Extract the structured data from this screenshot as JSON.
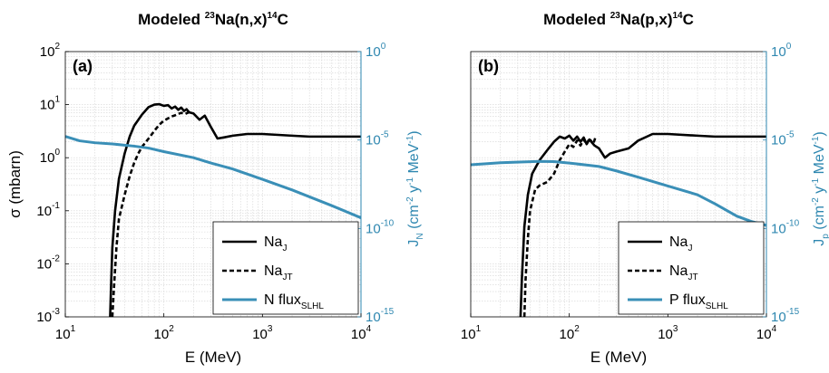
{
  "colors": {
    "na_j": "#000000",
    "na_jt": "#000000",
    "flux": "#3a8fb7",
    "right_axis": "#2e87b0",
    "grid": "#d4d4d4"
  },
  "chart_data": [
    {
      "type": "line",
      "panel_label": "(a)",
      "title": {
        "pre": "Modeled ",
        "sup1": "23",
        "mid": "Na(n,x)",
        "sup2": "14",
        "post": "C"
      },
      "xlabel": "E (MeV)",
      "ylabel": "σ (mbarn)",
      "y2label": {
        "main": "J",
        "sub": "N",
        "pre": " (cm",
        "e1": "-2",
        "mid1": " y",
        "e2": "-1",
        "mid2": " MeV",
        "e3": "-1",
        "post": ")"
      },
      "xscale": "log",
      "yscale": "log",
      "y2scale": "log",
      "xlim": [
        10,
        10000
      ],
      "ylim": [
        0.001,
        100
      ],
      "y2lim": [
        1e-15,
        1
      ],
      "x_ticks": [
        {
          "b": "10",
          "e": "1"
        },
        {
          "b": "10",
          "e": "2"
        },
        {
          "b": "10",
          "e": "3"
        },
        {
          "b": "10",
          "e": "4"
        }
      ],
      "y_ticks": [
        {
          "b": "10",
          "e": "-3"
        },
        {
          "b": "10",
          "e": "-2"
        },
        {
          "b": "10",
          "e": "-1"
        },
        {
          "b": "10",
          "e": "0"
        },
        {
          "b": "10",
          "e": "1"
        },
        {
          "b": "10",
          "e": "2"
        }
      ],
      "y2_ticks": [
        {
          "b": "10",
          "e": "-15"
        },
        {
          "b": "10",
          "e": "-10"
        },
        {
          "b": "10",
          "e": "-5"
        },
        {
          "b": "10",
          "e": "0"
        }
      ],
      "grid": true,
      "legend": {
        "position": "bottom-right",
        "entries": [
          {
            "main": "Na",
            "sub": "J",
            "style": "solid"
          },
          {
            "main": "Na",
            "sub": "JT",
            "style": "dashed"
          },
          {
            "main": "N flux",
            "sub": "SLHL",
            "style": "flux"
          }
        ]
      },
      "series": [
        {
          "name": "NaJ",
          "axis": "left",
          "style": "solid",
          "points": [
            [
              28.5,
              0.001
            ],
            [
              29,
              0.003
            ],
            [
              30,
              0.02
            ],
            [
              32,
              0.1
            ],
            [
              35,
              0.4
            ],
            [
              40,
              1.2
            ],
            [
              45,
              2.5
            ],
            [
              50,
              4
            ],
            [
              60,
              6.5
            ],
            [
              70,
              9
            ],
            [
              80,
              10
            ],
            [
              90,
              10.2
            ],
            [
              100,
              9.5
            ],
            [
              110,
              9.8
            ],
            [
              120,
              8.5
            ],
            [
              130,
              9.2
            ],
            [
              140,
              8
            ],
            [
              150,
              8.8
            ],
            [
              160,
              7.6
            ],
            [
              170,
              8.2
            ],
            [
              180,
              7.2
            ],
            [
              200,
              6.8
            ],
            [
              230,
              5.2
            ],
            [
              260,
              6.2
            ],
            [
              300,
              3.8
            ],
            [
              350,
              2.3
            ],
            [
              400,
              2.4
            ],
            [
              500,
              2.6
            ],
            [
              700,
              2.8
            ],
            [
              1000,
              2.8
            ],
            [
              2000,
              2.6
            ],
            [
              3000,
              2.5
            ],
            [
              10000,
              2.5
            ]
          ]
        },
        {
          "name": "NaJT",
          "axis": "left",
          "style": "dashed",
          "points": [
            [
              30,
              0.001
            ],
            [
              31,
              0.003
            ],
            [
              33,
              0.02
            ],
            [
              35,
              0.07
            ],
            [
              40,
              0.2
            ],
            [
              45,
              0.45
            ],
            [
              50,
              0.8
            ],
            [
              55,
              1.2
            ],
            [
              60,
              1.6
            ],
            [
              70,
              2.3
            ],
            [
              80,
              3.2
            ],
            [
              90,
              4.2
            ],
            [
              100,
              5
            ],
            [
              110,
              5.5
            ],
            [
              120,
              6
            ],
            [
              130,
              6.3
            ],
            [
              140,
              6.7
            ],
            [
              150,
              7
            ],
            [
              165,
              6.7
            ],
            [
              180,
              7.2
            ]
          ]
        },
        {
          "name": "N flux",
          "axis": "right",
          "style": "flux",
          "points": [
            [
              10,
              1.6e-05
            ],
            [
              14,
              9e-06
            ],
            [
              20,
              7e-06
            ],
            [
              30,
              6e-06
            ],
            [
              50,
              4.5e-06
            ],
            [
              70,
              3.5e-06
            ],
            [
              100,
              2.2e-06
            ],
            [
              200,
              1e-06
            ],
            [
              300,
              5e-07
            ],
            [
              500,
              2.3e-07
            ],
            [
              1000,
              6e-08
            ],
            [
              2000,
              1.5e-08
            ],
            [
              5000,
              2e-09
            ],
            [
              10000,
              4e-10
            ]
          ]
        }
      ]
    },
    {
      "type": "line",
      "panel_label": "(b)",
      "title": {
        "pre": "Modeled ",
        "sup1": "23",
        "mid": "Na(p,x)",
        "sup2": "14",
        "post": "C"
      },
      "xlabel": "E (MeV)",
      "ylabel": "",
      "y2label": {
        "main": "J",
        "sub": "p",
        "pre": " (cm",
        "e1": "-2",
        "mid1": " y",
        "e2": "-1",
        "mid2": " MeV",
        "e3": "-1",
        "post": ")"
      },
      "xscale": "log",
      "yscale": "log",
      "y2scale": "log",
      "xlim": [
        10,
        10000
      ],
      "ylim": [
        0.001,
        100
      ],
      "y2lim": [
        1e-15,
        1
      ],
      "x_ticks": [
        {
          "b": "10",
          "e": "1"
        },
        {
          "b": "10",
          "e": "2"
        },
        {
          "b": "10",
          "e": "3"
        },
        {
          "b": "10",
          "e": "4"
        }
      ],
      "y_ticks": [],
      "y2_ticks": [
        {
          "b": "10",
          "e": "-15"
        },
        {
          "b": "10",
          "e": "-10"
        },
        {
          "b": "10",
          "e": "-5"
        },
        {
          "b": "10",
          "e": "0"
        }
      ],
      "grid": true,
      "legend": {
        "position": "bottom-right",
        "entries": [
          {
            "main": "Na",
            "sub": "J",
            "style": "solid"
          },
          {
            "main": "Na",
            "sub": "JT",
            "style": "dashed"
          },
          {
            "main": "P flux",
            "sub": "SLHL",
            "style": "flux"
          }
        ]
      },
      "series": [
        {
          "name": "NaJ",
          "axis": "left",
          "style": "solid",
          "points": [
            [
              32,
              0.001
            ],
            [
              33,
              0.005
            ],
            [
              35,
              0.05
            ],
            [
              38,
              0.2
            ],
            [
              42,
              0.5
            ],
            [
              50,
              0.9
            ],
            [
              60,
              1.4
            ],
            [
              70,
              2
            ],
            [
              80,
              2.5
            ],
            [
              90,
              2.3
            ],
            [
              100,
              2.6
            ],
            [
              110,
              2.1
            ],
            [
              120,
              2.5
            ],
            [
              130,
              2
            ],
            [
              140,
              2.4
            ],
            [
              150,
              1.8
            ],
            [
              160,
              2.2
            ],
            [
              180,
              1.7
            ],
            [
              200,
              1.5
            ],
            [
              230,
              1
            ],
            [
              260,
              1.2
            ],
            [
              300,
              1.3
            ],
            [
              400,
              1.5
            ],
            [
              500,
              2.1
            ],
            [
              700,
              2.8
            ],
            [
              1000,
              2.8
            ],
            [
              2000,
              2.6
            ],
            [
              3000,
              2.5
            ],
            [
              10000,
              2.5
            ]
          ]
        },
        {
          "name": "NaJT",
          "axis": "left",
          "style": "dashed",
          "points": [
            [
              35,
              0.001
            ],
            [
              36,
              0.005
            ],
            [
              38,
              0.03
            ],
            [
              40,
              0.1
            ],
            [
              45,
              0.25
            ],
            [
              50,
              0.3
            ],
            [
              60,
              0.35
            ],
            [
              70,
              0.5
            ],
            [
              80,
              0.9
            ],
            [
              90,
              1.3
            ],
            [
              100,
              1.8
            ],
            [
              110,
              1.6
            ],
            [
              120,
              2.1
            ],
            [
              130,
              1.7
            ],
            [
              140,
              2.2
            ],
            [
              150,
              1.8
            ],
            [
              160,
              2.3
            ],
            [
              175,
              1.8
            ],
            [
              185,
              2.5
            ]
          ]
        },
        {
          "name": "P flux",
          "axis": "right",
          "style": "flux",
          "points": [
            [
              10,
              4e-07
            ],
            [
              20,
              5.2e-07
            ],
            [
              50,
              6.2e-07
            ],
            [
              70,
              6e-07
            ],
            [
              100,
              5e-07
            ],
            [
              200,
              3.2e-07
            ],
            [
              300,
              1.8e-07
            ],
            [
              500,
              8e-08
            ],
            [
              1000,
              2.5e-08
            ],
            [
              2000,
              8e-09
            ],
            [
              3000,
              2.5e-09
            ],
            [
              5000,
              5e-10
            ],
            [
              7000,
              2.5e-10
            ],
            [
              10000,
              1.5e-10
            ]
          ]
        }
      ]
    }
  ]
}
